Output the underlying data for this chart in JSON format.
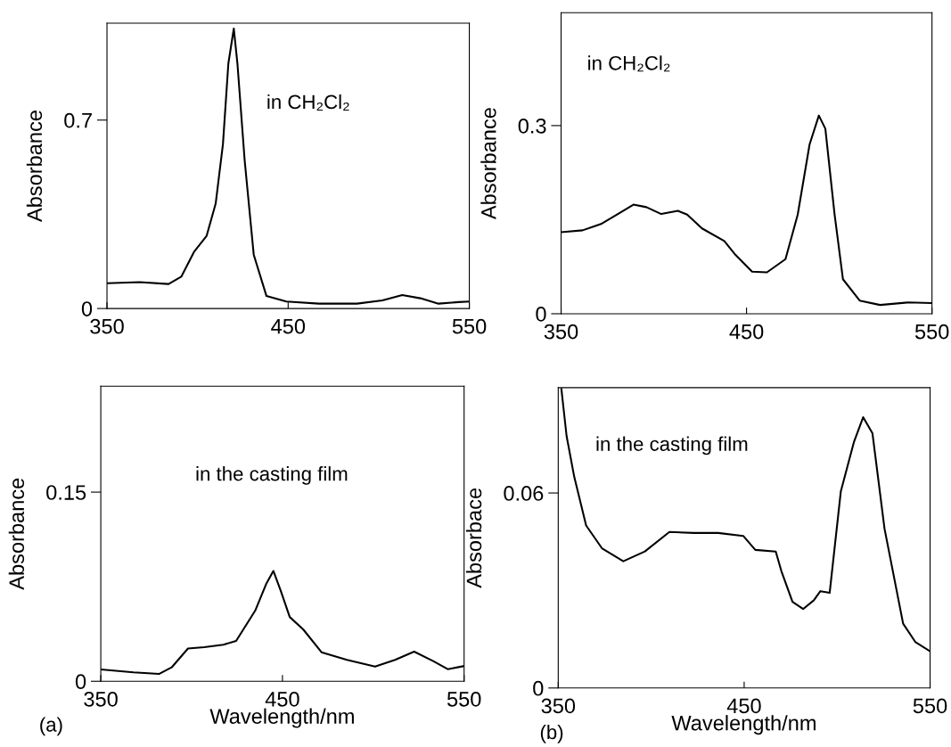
{
  "chart_data": [
    {
      "type": "line",
      "ylabel": "Absorbance",
      "annotations": [
        "in CH₂Cl₂"
      ],
      "xlim": [
        350,
        550
      ],
      "xticks": [
        350,
        450,
        550
      ],
      "ylim": [
        0,
        1.06
      ],
      "yticks": [
        0,
        0.7
      ],
      "marker": "none",
      "line_style": "solid",
      "x": [
        350,
        368,
        384,
        391,
        398,
        405,
        410,
        414,
        417,
        420,
        422,
        426,
        431,
        438,
        449,
        467,
        488,
        502,
        513,
        523,
        533,
        544,
        550
      ],
      "series": [
        {
          "color": "#000000",
          "values": [
            0.094,
            0.098,
            0.091,
            0.118,
            0.21,
            0.27,
            0.39,
            0.61,
            0.91,
            1.04,
            0.91,
            0.55,
            0.2,
            0.047,
            0.026,
            0.018,
            0.018,
            0.03,
            0.05,
            0.038,
            0.018,
            0.024,
            0.026
          ]
        }
      ]
    },
    {
      "type": "line",
      "ylabel": "Absorbance",
      "annotations": [
        "in CH₂Cl₂"
      ],
      "xlim": [
        350,
        550
      ],
      "xticks": [
        350,
        450,
        550
      ],
      "ylim": [
        0,
        0.48
      ],
      "yticks": [
        0,
        0.3
      ],
      "marker": "none",
      "line_style": "solid",
      "x": [
        350,
        361.6,
        371.5,
        380,
        389,
        396,
        404,
        413,
        418,
        426,
        438,
        444,
        453,
        461,
        471,
        477.6,
        484,
        489,
        492.5,
        497.5,
        502,
        511,
        522,
        537,
        550
      ],
      "series": [
        {
          "color": "#000000",
          "values": [
            0.13,
            0.133,
            0.143,
            0.158,
            0.174,
            0.17,
            0.159,
            0.164,
            0.158,
            0.136,
            0.116,
            0.094,
            0.067,
            0.066,
            0.087,
            0.158,
            0.27,
            0.316,
            0.295,
            0.158,
            0.055,
            0.021,
            0.014,
            0.018,
            0.017
          ]
        }
      ]
    },
    {
      "type": "line",
      "xlabel": "Wavelength/nm",
      "ylabel": "Absorbance",
      "annotations": [
        "in the casting film",
        "(a)"
      ],
      "xlim": [
        350,
        550
      ],
      "xticks": [
        350,
        450,
        550
      ],
      "ylim": [
        0,
        0.234
      ],
      "yticks": [
        0,
        0.15
      ],
      "marker": "none",
      "line_style": "solid",
      "x": [
        350,
        368,
        382,
        389,
        398,
        407,
        417.5,
        424.5,
        435,
        441,
        445,
        449,
        454,
        461.5,
        471.5,
        485.5,
        501,
        512,
        522.5,
        533,
        541,
        549.7
      ],
      "series": [
        {
          "color": "#000000",
          "values": [
            0.0094,
            0.0071,
            0.0058,
            0.011,
            0.026,
            0.027,
            0.029,
            0.032,
            0.056,
            0.077,
            0.0875,
            0.072,
            0.051,
            0.041,
            0.023,
            0.017,
            0.0116,
            0.017,
            0.0235,
            0.016,
            0.0096,
            0.012
          ]
        }
      ]
    },
    {
      "type": "line",
      "xlabel": "Wavelength/nm",
      "ylabel": "Absorbace",
      "annotations": [
        "in the casting film",
        "(b)"
      ],
      "xlim": [
        350,
        550
      ],
      "xticks": [
        350,
        450,
        550
      ],
      "ylim": [
        0,
        0.0924
      ],
      "yticks": [
        0,
        0.06
      ],
      "marker": "none",
      "line_style": "solid",
      "x": [
        351.7,
        354.5,
        358.6,
        365,
        373.5,
        385,
        396.6,
        409.8,
        423,
        436,
        449.5,
        456,
        467,
        470,
        476,
        481.7,
        487.5,
        491,
        496,
        502,
        509,
        514,
        519,
        525.5,
        535.5,
        542,
        550
      ],
      "series": [
        {
          "color": "#000000",
          "values": [
            0.092,
            0.0775,
            0.065,
            0.05,
            0.043,
            0.039,
            0.042,
            0.048,
            0.0477,
            0.0477,
            0.0468,
            0.0425,
            0.042,
            0.036,
            0.0265,
            0.0243,
            0.027,
            0.0298,
            0.0293,
            0.0605,
            0.0756,
            0.0833,
            0.0784,
            0.049,
            0.0198,
            0.0142,
            0.0113
          ]
        }
      ]
    }
  ]
}
